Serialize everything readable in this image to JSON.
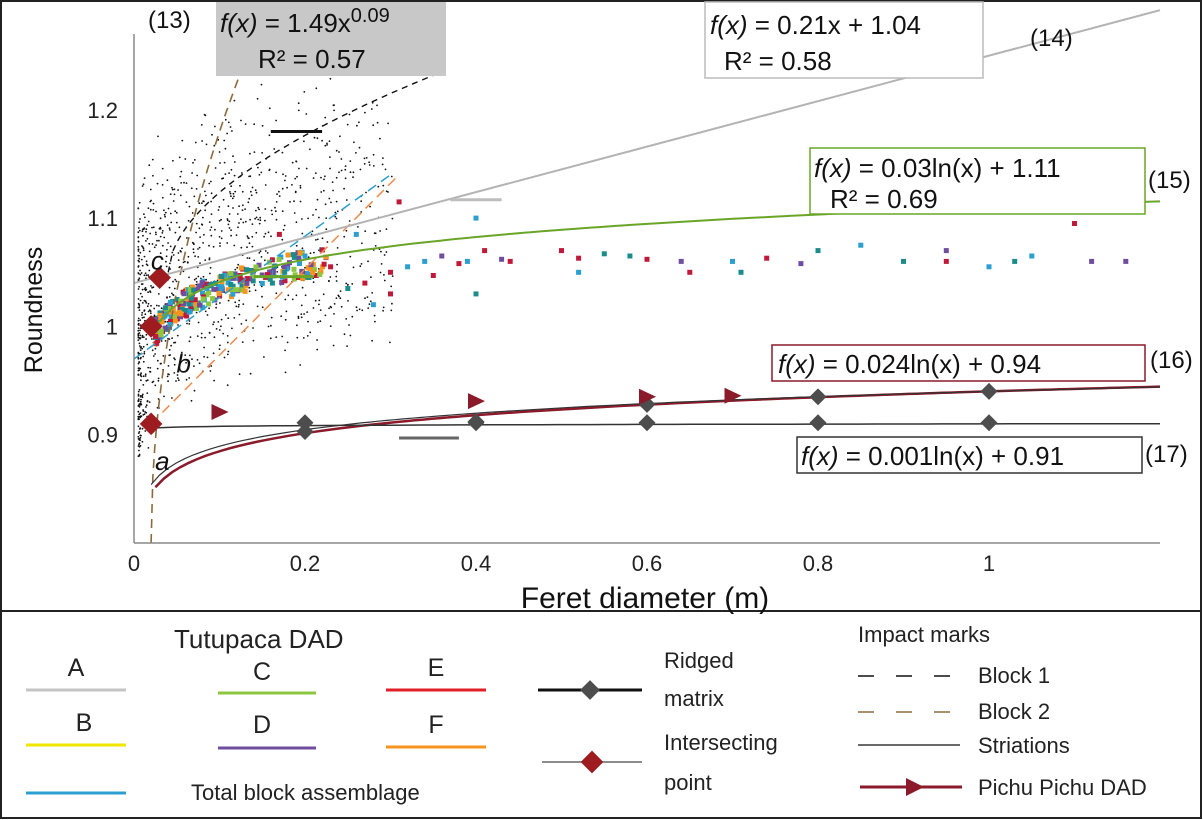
{
  "chart_data": {
    "type": "scatter",
    "xlabel": "Feret diameter (m)",
    "ylabel": "Roundness",
    "xlim": [
      0,
      1.2
    ],
    "ylim": [
      0.8,
      1.27
    ],
    "x_ticks": [
      {
        "value": 0,
        "label": "0"
      },
      {
        "value": 0.2,
        "label": "0.2"
      },
      {
        "value": 0.4,
        "label": "0.4"
      },
      {
        "value": 0.6,
        "label": "0.6"
      },
      {
        "value": 0.8,
        "label": "0.8"
      },
      {
        "value": 1.0,
        "label": "1"
      }
    ],
    "y_ticks": [
      {
        "value": 0.9,
        "label": "0.9"
      },
      {
        "value": 1.0,
        "label": "1"
      },
      {
        "value": 1.1,
        "label": "1.1"
      },
      {
        "value": 1.2,
        "label": "1.2"
      }
    ],
    "grid": false,
    "equations": [
      {
        "id": "13",
        "number": "(13)",
        "fx": "f(x)",
        "rhs": " = 1.49x",
        "exp": "0.09",
        "r2": "R² = 0.57",
        "curve": "power",
        "a": 1.49,
        "b": 0.09,
        "box": "gray-fill"
      },
      {
        "id": "14",
        "number": "(14)",
        "fx": "f(x)",
        "rhs": " = 0.21x + 1.04",
        "r2": "R² = 0.58",
        "curve": "linear",
        "a": 0.21,
        "b": 1.04,
        "color": "#b3b3b3"
      },
      {
        "id": "15",
        "number": "(15)",
        "fx": "f(x)",
        "rhs": " = 0.03ln(x) + 1.11",
        "r2": "R² = 0.69",
        "curve": "log",
        "a": 0.03,
        "b": 1.11,
        "color": "#6aa52a"
      },
      {
        "id": "16",
        "number": "(16)",
        "fx": "f(x)",
        "rhs": " = 0.024ln(x) + 0.94",
        "curve": "log",
        "a": 0.024,
        "b": 0.94,
        "color": "#8b1a2b"
      },
      {
        "id": "17",
        "number": "(17)",
        "fx": "f(x)",
        "rhs": " = 0.001ln(x) + 0.91",
        "curve": "log",
        "a": 0.001,
        "b": 0.91,
        "color": "#333333"
      }
    ],
    "point_labels": [
      {
        "text": "a",
        "x": 0.02,
        "y": 0.875
      },
      {
        "text": "b",
        "x": 0.045,
        "y": 0.965
      },
      {
        "text": "c",
        "x": 0.015,
        "y": 1.06
      }
    ],
    "intersecting_points": [
      {
        "x": 0.02,
        "y": 0.91
      },
      {
        "x": 0.02,
        "y": 1.0
      },
      {
        "x": 0.03,
        "y": 1.045
      }
    ],
    "ridged_matrix_points": [
      {
        "x": 0.2,
        "y": 0.911
      },
      {
        "x": 0.4,
        "y": 0.911
      },
      {
        "x": 0.6,
        "y": 0.911
      },
      {
        "x": 0.8,
        "y": 0.911
      },
      {
        "x": 1.0,
        "y": 0.911
      },
      {
        "x": 0.2,
        "y": 0.903
      },
      {
        "x": 0.4,
        "y": 0.912
      },
      {
        "x": 0.6,
        "y": 0.928
      },
      {
        "x": 0.8,
        "y": 0.935
      },
      {
        "x": 1.0,
        "y": 0.94
      }
    ],
    "striation_curve": {
      "from_x": 0.02,
      "to_x": 1.2,
      "a": 0.022,
      "b": 0.94
    },
    "pichu_pichu_markers": [
      {
        "x": 0.1,
        "y": 0.921
      },
      {
        "x": 0.4,
        "y": 0.931
      },
      {
        "x": 0.6,
        "y": 0.935
      },
      {
        "x": 0.7,
        "y": 0.936
      }
    ],
    "block1_curve": {
      "from_x": 0.04,
      "to_x": 0.36,
      "y_start": 1.05,
      "y_end": 1.235
    },
    "block2_curve": {
      "from_x": 0.02,
      "to_x": 0.14,
      "y_start": 0.8,
      "y_end": 1.265
    },
    "dashed_blue": {
      "from_x": 0,
      "to_x": 0.3,
      "y_start": 0.97,
      "y_end": 1.14
    },
    "dashed_orange": {
      "from_x": 0.02,
      "to_x": 0.31,
      "y_start": 0.91,
      "y_end": 1.14
    },
    "short_bars": [
      {
        "color": "#111111",
        "x1": 0.16,
        "x2": 0.22,
        "y": 1.18,
        "width": 3
      },
      {
        "color": "#bdbdbd",
        "x1": 0.37,
        "x2": 0.43,
        "y": 1.117,
        "width": 3
      },
      {
        "color": "#6aa52a",
        "x1": 0.14,
        "x2": 0.21,
        "y": 1.046,
        "width": 3
      },
      {
        "color": "#666666",
        "x1": 0.31,
        "x2": 0.38,
        "y": 0.897,
        "width": 3
      }
    ],
    "colored_points": [
      {
        "x": 0.3,
        "y": 1.05,
        "c": "#c0193a"
      },
      {
        "x": 0.32,
        "y": 1.055,
        "c": "#2a9fd0"
      },
      {
        "x": 0.34,
        "y": 1.06,
        "c": "#2a9fd0"
      },
      {
        "x": 0.35,
        "y": 1.047,
        "c": "#c0193a"
      },
      {
        "x": 0.36,
        "y": 1.065,
        "c": "#6f4ea0"
      },
      {
        "x": 0.38,
        "y": 1.058,
        "c": "#c0193a"
      },
      {
        "x": 0.39,
        "y": 1.06,
        "c": "#2a9fd0"
      },
      {
        "x": 0.4,
        "y": 1.03,
        "c": "#1a8c8c"
      },
      {
        "x": 0.41,
        "y": 1.07,
        "c": "#c0193a"
      },
      {
        "x": 0.43,
        "y": 1.062,
        "c": "#6f4ea0"
      },
      {
        "x": 0.44,
        "y": 1.06,
        "c": "#c0193a"
      },
      {
        "x": 0.5,
        "y": 1.07,
        "c": "#c0193a"
      },
      {
        "x": 0.52,
        "y": 1.05,
        "c": "#2a9fd0"
      },
      {
        "x": 0.52,
        "y": 1.063,
        "c": "#c0193a"
      },
      {
        "x": 0.55,
        "y": 1.067,
        "c": "#1a8c8c"
      },
      {
        "x": 0.58,
        "y": 1.065,
        "c": "#1a8c8c"
      },
      {
        "x": 0.6,
        "y": 1.062,
        "c": "#c0193a"
      },
      {
        "x": 0.64,
        "y": 1.06,
        "c": "#6f4ea0"
      },
      {
        "x": 0.65,
        "y": 1.05,
        "c": "#c0193a"
      },
      {
        "x": 0.7,
        "y": 1.06,
        "c": "#2a9fd0"
      },
      {
        "x": 0.71,
        "y": 1.05,
        "c": "#1a8c8c"
      },
      {
        "x": 0.74,
        "y": 1.063,
        "c": "#c0193a"
      },
      {
        "x": 0.78,
        "y": 1.058,
        "c": "#6f4ea0"
      },
      {
        "x": 0.8,
        "y": 1.07,
        "c": "#1a8c8c"
      },
      {
        "x": 0.85,
        "y": 1.075,
        "c": "#2a9fd0"
      },
      {
        "x": 0.9,
        "y": 1.06,
        "c": "#1a8c8c"
      },
      {
        "x": 0.95,
        "y": 1.07,
        "c": "#6f4ea0"
      },
      {
        "x": 0.95,
        "y": 1.06,
        "c": "#c0193a"
      },
      {
        "x": 1.0,
        "y": 1.055,
        "c": "#2a9fd0"
      },
      {
        "x": 1.03,
        "y": 1.06,
        "c": "#1a8c8c"
      },
      {
        "x": 1.05,
        "y": 1.065,
        "c": "#2a9fd0"
      },
      {
        "x": 1.1,
        "y": 1.095,
        "c": "#c0193a"
      },
      {
        "x": 1.12,
        "y": 1.06,
        "c": "#6f4ea0"
      },
      {
        "x": 1.16,
        "y": 1.06,
        "c": "#6f4ea0"
      },
      {
        "x": 0.3,
        "y": 1.03,
        "c": "#c0193a"
      },
      {
        "x": 0.27,
        "y": 1.04,
        "c": "#c0193a"
      },
      {
        "x": 0.25,
        "y": 1.035,
        "c": "#1a8c8c"
      },
      {
        "x": 0.28,
        "y": 1.02,
        "c": "#2a9fd0"
      },
      {
        "x": 0.23,
        "y": 1.055,
        "c": "#c0193a"
      },
      {
        "x": 0.2,
        "y": 1.065,
        "c": "#2a9fd0"
      },
      {
        "x": 0.4,
        "y": 1.1,
        "c": "#2a9fd0"
      },
      {
        "x": 0.31,
        "y": 1.115,
        "c": "#c0193a"
      },
      {
        "x": 0.17,
        "y": 1.085,
        "c": "#c0193a"
      },
      {
        "x": 0.26,
        "y": 1.085,
        "c": "#2a9fd0"
      },
      {
        "x": 0.8,
        "y": 0.87,
        "c": "#6f4ea0"
      }
    ],
    "colors": {
      "A": "#c4c4c4",
      "B": "#f2e500",
      "C": "#8dc63f",
      "D": "#6f4ea0",
      "E": "#e21f26",
      "F": "#f7941d",
      "total": "#2a9fd0",
      "ridged": "#4d4d4d",
      "intersect": "#9e1b20",
      "pichu": "#8b1a2b"
    }
  },
  "legend": {
    "tutupaca_title": "Tutupaca DAD",
    "A": "A",
    "B": "B",
    "C": "C",
    "D": "D",
    "E": "E",
    "F": "F",
    "total": "Total block assemblage",
    "ridged_1": "Ridged",
    "ridged_2": "matrix",
    "intersect_1": "Intersecting",
    "intersect_2": "point",
    "impact_title": "Impact marks",
    "block1": "Block 1",
    "block2": "Block 2",
    "striations": "Striations",
    "pichu": "Pichu Pichu DAD"
  }
}
